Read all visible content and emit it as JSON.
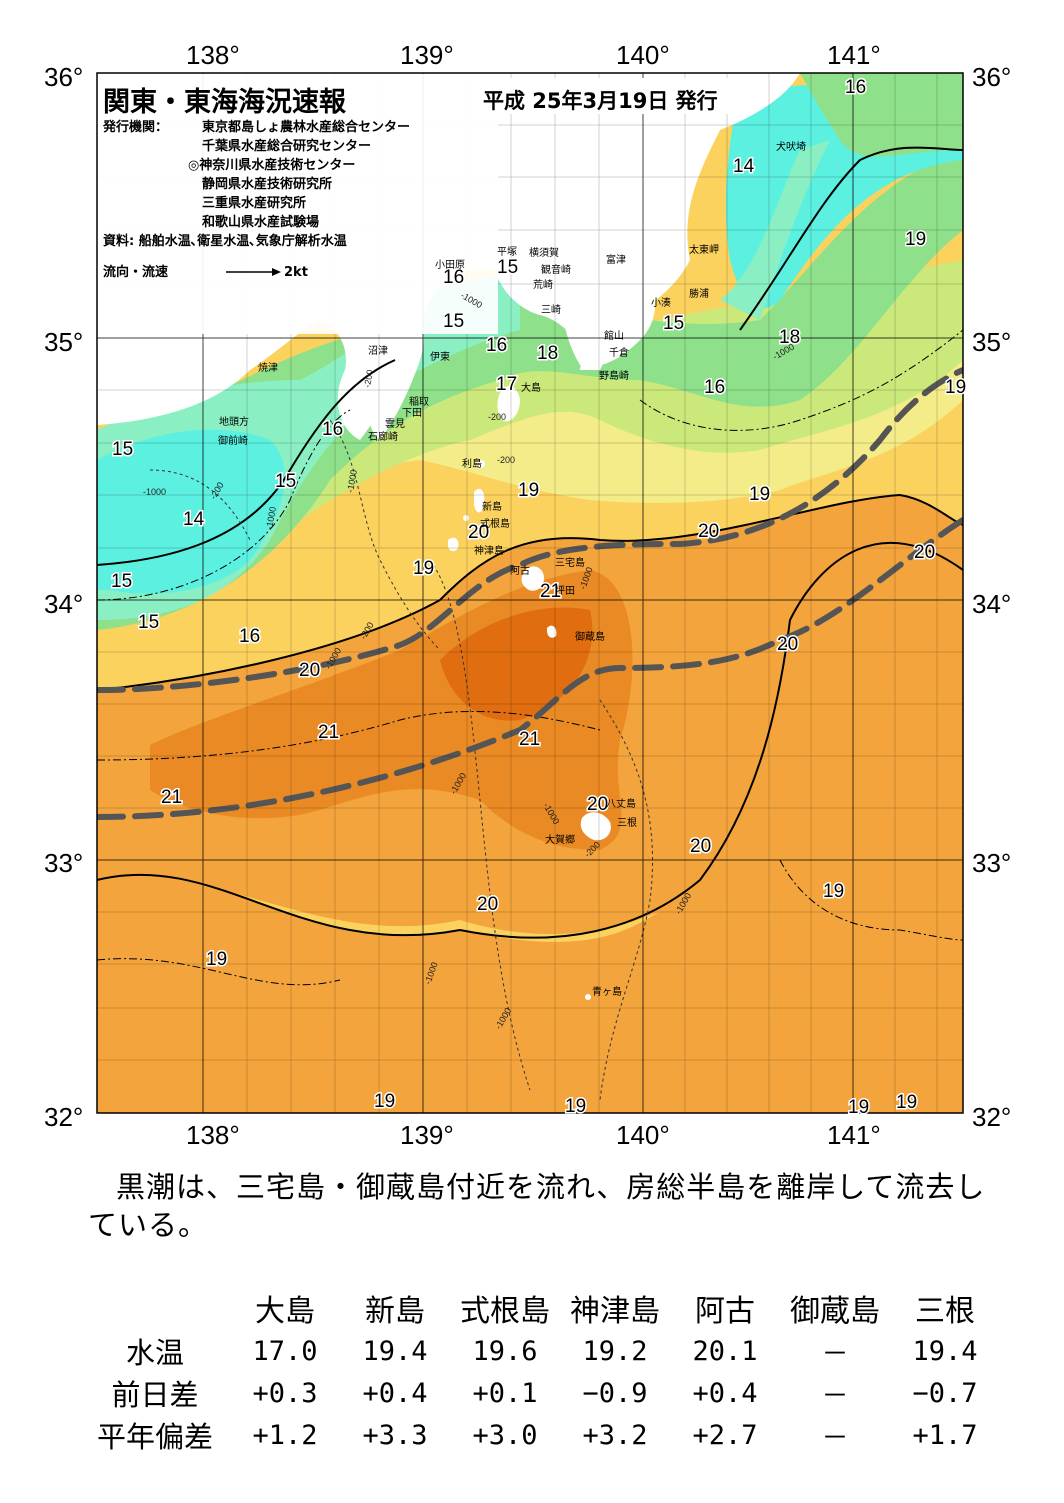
{
  "header": {
    "title": "関東・東海海況速報",
    "issue_date": "平成 25年3月19日 発行",
    "issuer_label": "発行機関：",
    "issuers": [
      "東京都島しょ農林水産総合センター",
      "千葉県水産総合研究センター",
      "◎神奈川県水産技術センター",
      "静岡県水産技術研究所",
      "三重県水産研究所",
      "和歌山県水産試験場"
    ],
    "source": "資料: 船舶水温､衛星水温､気象庁解析水温",
    "current_legend": "流向・流速",
    "current_scale": "2kt"
  },
  "map": {
    "lon_labels": [
      "138°",
      "139°",
      "140°",
      "141°"
    ],
    "lat_labels": [
      "36°",
      "35°",
      "34°",
      "33°",
      "32°"
    ],
    "colors": {
      "t14": "#5cf0e0",
      "t15": "#8af0c4",
      "t16": "#8ee08a",
      "t17": "#cbe87a",
      "t18": "#f4ec88",
      "t19": "#fcd25e",
      "t20": "#f3a43c",
      "t21": "#ea8a24",
      "t21hi": "#e06e10",
      "land": "#ffffff",
      "kuroshio_axis": "#555555"
    },
    "place_names": [
      "犬吠埼",
      "太東岬",
      "勝浦",
      "小湊",
      "富津",
      "館山",
      "千倉",
      "野島崎",
      "横須賀",
      "観音崎",
      "平塚",
      "小田原",
      "荒崎",
      "三崎",
      "大島",
      "沼津",
      "伊東",
      "稲取",
      "下田",
      "焼津",
      "地頭方",
      "御前崎",
      "雲見",
      "石廊崎",
      "利島",
      "新島",
      "式根島",
      "神津島",
      "阿古",
      "三宅島",
      "坪田",
      "御蔵島",
      "八丈島",
      "三根",
      "大賀郷",
      "青ヶ島"
    ],
    "contour_labels": [
      "14",
      "15",
      "16",
      "17",
      "18",
      "19",
      "20",
      "21"
    ],
    "depth_labels": [
      "-200",
      "-1000"
    ]
  },
  "comment": "黒潮は、三宅島・御蔵島付近を流れ、房総半島を離岸して流去している。",
  "table": {
    "stations": [
      "大島",
      "新島",
      "式根島",
      "神津島",
      "阿古",
      "御蔵島",
      "三根"
    ],
    "rows": [
      {
        "label": "水温",
        "values": [
          "17.0",
          "19.4",
          "19.6",
          "19.2",
          "20.1",
          "－",
          "19.4"
        ]
      },
      {
        "label": "前日差",
        "values": [
          "+0.3",
          "+0.4",
          "+0.1",
          "−0.9",
          "+0.4",
          "－",
          "−0.7"
        ]
      },
      {
        "label": "平年偏差",
        "values": [
          "+1.2",
          "+3.3",
          "+3.0",
          "+3.2",
          "+2.7",
          "－",
          "+1.7"
        ]
      }
    ]
  }
}
